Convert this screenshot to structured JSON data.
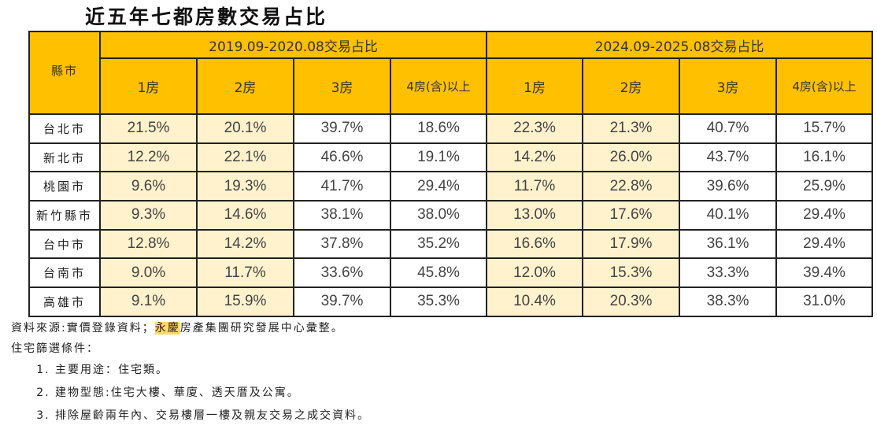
{
  "title": "近五年七都房數交易占比",
  "table": {
    "city_header": "縣市",
    "groups": [
      {
        "label": "2019.09-2020.08交易占比"
      },
      {
        "label": "2024.09-2025.08交易占比"
      }
    ],
    "room_headers": [
      "1房",
      "2房",
      "3房",
      "4房(含)以上"
    ],
    "rows": [
      {
        "city": "台北市",
        "values": [
          "21.5%",
          "20.1%",
          "39.7%",
          "18.6%",
          "22.3%",
          "21.3%",
          "40.7%",
          "15.7%"
        ]
      },
      {
        "city": "新北市",
        "values": [
          "12.2%",
          "22.1%",
          "46.6%",
          "19.1%",
          "14.2%",
          "26.0%",
          "43.7%",
          "16.1%"
        ]
      },
      {
        "city": "桃園市",
        "values": [
          "9.6%",
          "19.3%",
          "41.7%",
          "29.4%",
          "11.7%",
          "22.8%",
          "39.6%",
          "25.9%"
        ]
      },
      {
        "city": "新竹縣市",
        "values": [
          "9.3%",
          "14.6%",
          "38.1%",
          "38.0%",
          "13.0%",
          "17.6%",
          "40.1%",
          "29.4%"
        ]
      },
      {
        "city": "台中市",
        "values": [
          "12.8%",
          "14.2%",
          "37.8%",
          "35.2%",
          "16.6%",
          "17.9%",
          "36.1%",
          "29.4%"
        ]
      },
      {
        "city": "台南市",
        "values": [
          "9.0%",
          "11.7%",
          "33.6%",
          "45.8%",
          "12.0%",
          "15.3%",
          "33.3%",
          "39.4%"
        ]
      },
      {
        "city": "高雄市",
        "values": [
          "9.1%",
          "15.9%",
          "39.7%",
          "35.3%",
          "10.4%",
          "20.3%",
          "38.3%",
          "31.0%"
        ]
      }
    ]
  },
  "notes": {
    "source_prefix": "資料來源:實價登錄資料；",
    "source_highlight": "永慶",
    "source_suffix": "房產集團研究發展中心彙整。",
    "criteria_title": "住宅篩選條件：",
    "criteria": [
      "主要用途：住宅類。",
      "建物型態:住宅大樓、華廈、透天厝及公寓。",
      "排除屋齡兩年內、交易樓層一樓及親友交易之成交資料。"
    ]
  },
  "colors": {
    "header": "#FFC000",
    "highlight_cell": "#FFF2CC"
  }
}
